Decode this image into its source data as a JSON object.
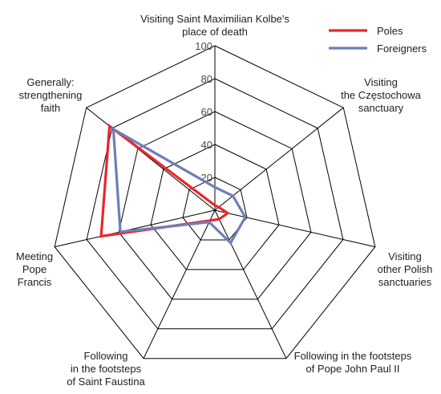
{
  "chart_data": {
    "type": "radar",
    "title": "",
    "axes": [
      "Visiting Saint Maximilian Kolbe's place of death",
      "Visiting the Częstochowa sanctuary",
      "Visiting other Polish sanctuaries",
      "Following in the footsteps of Pope John Paul II",
      "Following in the footsteps of Saint Faustina",
      "Meeting Pope Francis",
      "Generally: strengthening faith"
    ],
    "axis_label_lines": [
      [
        "Visiting Saint Maximilian Kolbe's",
        "place of death"
      ],
      [
        "Visiting",
        "the Częstochowa",
        "sanctuary"
      ],
      [
        "Visiting",
        "other Polish",
        "sanctuaries"
      ],
      [
        "Following in the footsteps",
        "of Pope John Paul II"
      ],
      [
        "Following",
        "in the footsteps",
        "of Saint Faustina"
      ],
      [
        "Meeting",
        "Pope",
        "Francis"
      ],
      [
        "Generally:",
        "strengthening",
        "faith"
      ]
    ],
    "range": [
      0,
      100
    ],
    "ticks": [
      "20",
      "40",
      "60",
      "80",
      "100"
    ],
    "tick_values": [
      20,
      40,
      60,
      80,
      100
    ],
    "grid": true,
    "legend_position": "top-right",
    "series": [
      {
        "name": "Poles",
        "color": "#e8272c",
        "values": [
          3,
          3,
          8,
          6,
          7,
          71,
          82
        ]
      },
      {
        "name": "Foreigners",
        "color": "#6f7eb8",
        "values": [
          14,
          14,
          19,
          22,
          8,
          59,
          79
        ]
      }
    ]
  }
}
